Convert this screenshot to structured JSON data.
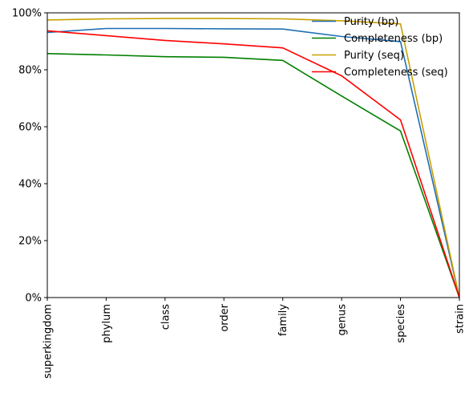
{
  "chart_data": {
    "type": "line",
    "categories": [
      "superkingdom",
      "phylum",
      "class",
      "order",
      "family",
      "genus",
      "species",
      "strain"
    ],
    "ylim": [
      0,
      100
    ],
    "ytick_labels": [
      "0%",
      "20%",
      "40%",
      "60%",
      "80%",
      "100%"
    ],
    "ytick_values": [
      0,
      20,
      40,
      60,
      80,
      100
    ],
    "grid": false,
    "legend_position": "top-right",
    "series": [
      {
        "name": "Purity (bp)",
        "color": "#1f6fb4",
        "values": [
          93.1,
          94.5,
          94.5,
          94.4,
          94.3,
          91.7,
          89.9,
          0.0
        ]
      },
      {
        "name": "Completeness (bp)",
        "color": "#008000",
        "values": [
          85.7,
          85.2,
          84.6,
          84.4,
          83.3,
          70.8,
          58.5,
          0.0
        ]
      },
      {
        "name": "Purity (seq)",
        "color": "#c8a000",
        "values": [
          97.5,
          97.9,
          98.0,
          98.0,
          97.9,
          97.2,
          96.1,
          0.0
        ]
      },
      {
        "name": "Completeness (seq)",
        "color": "#ff0000",
        "values": [
          93.7,
          92.0,
          90.3,
          89.1,
          87.7,
          77.9,
          62.4,
          0.0
        ]
      }
    ]
  }
}
